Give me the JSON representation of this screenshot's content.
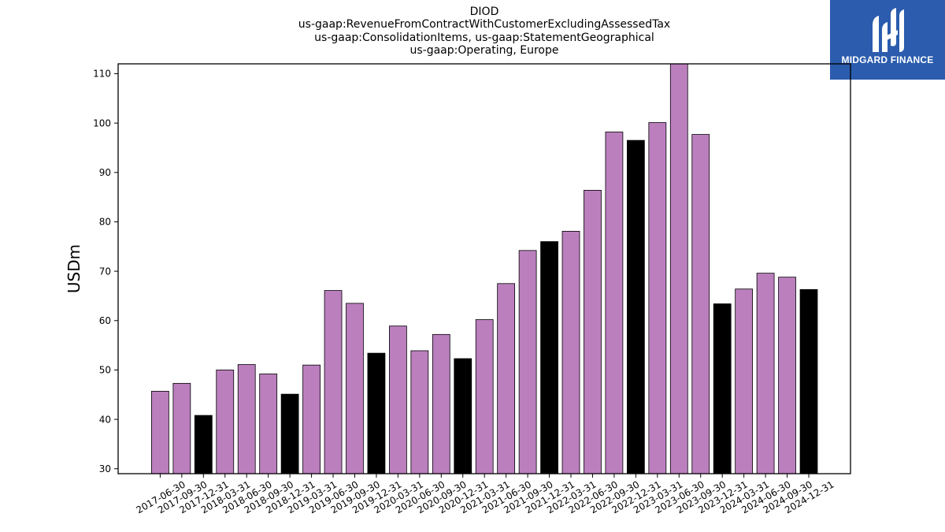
{
  "header": {
    "title_lines": [
      "DIOD",
      "us-gaap:RevenueFromContractWithCustomerExcludingAssessedTax",
      "us-gaap:ConsolidationItems, us-gaap:StatementGeographical",
      "us-gaap:Operating, Europe"
    ]
  },
  "logo": {
    "text": "MIDGARD FINANCE",
    "background": "#2b5cad"
  },
  "colors": {
    "quarter_bar": "#bb7fbe",
    "year_end_bar": "#000000",
    "edge": "#000000"
  },
  "chart_data": {
    "type": "bar",
    "title": "DIOD",
    "ylabel": "USDm",
    "xlabel": "",
    "ylim": [
      29,
      112
    ],
    "yticks": [
      30,
      40,
      50,
      60,
      70,
      80,
      90,
      100,
      110
    ],
    "grid": false,
    "categories": [
      "2017-06-30",
      "2017-09-30",
      "2017-12-31",
      "2018-03-31",
      "2018-06-30",
      "2018-09-30",
      "2018-12-31",
      "2019-03-31",
      "2019-06-30",
      "2019-09-30",
      "2019-12-31",
      "2020-03-31",
      "2020-06-30",
      "2020-09-30",
      "2020-12-31",
      "2021-03-31",
      "2021-06-30",
      "2021-09-30",
      "2021-12-31",
      "2022-03-31",
      "2022-06-30",
      "2022-09-30",
      "2022-12-31",
      "2023-03-31",
      "2023-06-30",
      "2023-09-30",
      "2023-12-31",
      "2024-03-31",
      "2024-06-30",
      "2024-09-30",
      "2024-12-31"
    ],
    "values": [
      45.7,
      47.3,
      40.8,
      50.0,
      51.1,
      49.2,
      45.1,
      51.0,
      66.1,
      63.5,
      53.4,
      58.9,
      53.9,
      57.2,
      52.3,
      60.2,
      67.5,
      74.2,
      76.0,
      78.1,
      86.4,
      98.2,
      96.5,
      100.1,
      112.0,
      97.7,
      63.4,
      66.4,
      69.6,
      68.8,
      66.3
    ]
  }
}
